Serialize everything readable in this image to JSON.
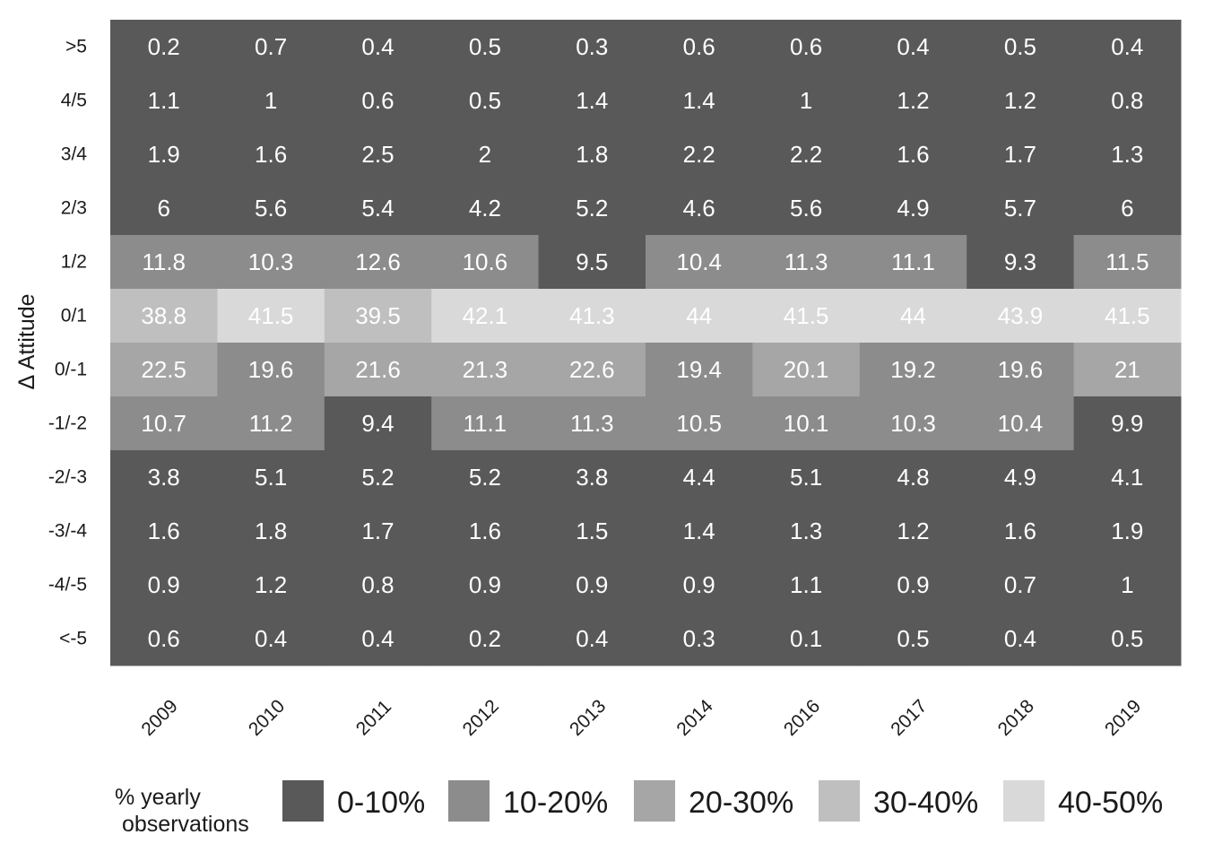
{
  "chart_data": {
    "type": "heatmap",
    "title": "",
    "xlabel": "",
    "ylabel": "Δ Attitude",
    "x_categories": [
      "2009",
      "2010",
      "2011",
      "2012",
      "2013",
      "2014",
      "2016",
      "2017",
      "2018",
      "2019"
    ],
    "y_categories": [
      ">5",
      "4/5",
      "3/4",
      "2/3",
      "1/2",
      "0/1",
      "0/-1",
      "-1/-2",
      "-2/-3",
      "-3/-4",
      "-4/-5",
      "<-5"
    ],
    "values": [
      [
        0.2,
        0.7,
        0.4,
        0.5,
        0.3,
        0.6,
        0.6,
        0.4,
        0.5,
        0.4
      ],
      [
        1.1,
        1,
        0.6,
        0.5,
        1.4,
        1.4,
        1,
        1.2,
        1.2,
        0.8
      ],
      [
        1.9,
        1.6,
        2.5,
        2,
        1.8,
        2.2,
        2.2,
        1.6,
        1.7,
        1.3
      ],
      [
        6,
        5.6,
        5.4,
        4.2,
        5.2,
        4.6,
        5.6,
        4.9,
        5.7,
        6
      ],
      [
        11.8,
        10.3,
        12.6,
        10.6,
        9.5,
        10.4,
        11.3,
        11.1,
        9.3,
        11.5
      ],
      [
        38.8,
        41.5,
        39.5,
        42.1,
        41.3,
        44,
        41.5,
        44,
        43.9,
        41.5
      ],
      [
        22.5,
        19.6,
        21.6,
        21.3,
        22.6,
        19.4,
        20.1,
        19.2,
        19.6,
        21
      ],
      [
        10.7,
        11.2,
        9.4,
        11.1,
        11.3,
        10.5,
        10.1,
        10.3,
        10.4,
        9.9
      ],
      [
        3.8,
        5.1,
        5.2,
        5.2,
        3.8,
        4.4,
        5.1,
        4.8,
        4.9,
        4.1
      ],
      [
        1.6,
        1.8,
        1.7,
        1.6,
        1.5,
        1.4,
        1.3,
        1.2,
        1.6,
        1.9
      ],
      [
        0.9,
        1.2,
        0.8,
        0.9,
        0.9,
        0.9,
        1.1,
        0.9,
        0.7,
        1
      ],
      [
        0.6,
        0.4,
        0.4,
        0.2,
        0.4,
        0.3,
        0.1,
        0.5,
        0.4,
        0.5
      ]
    ],
    "legend": {
      "title_lines": [
        "% yearly",
        "observations"
      ],
      "placement": "bottom",
      "bins": [
        {
          "label": "0-10%",
          "min": 0,
          "max": 10,
          "color": "#595959"
        },
        {
          "label": "10-20%",
          "min": 10,
          "max": 20,
          "color": "#8c8c8c"
        },
        {
          "label": "20-30%",
          "min": 20,
          "max": 30,
          "color": "#a6a6a6"
        },
        {
          "label": "30-40%",
          "min": 30,
          "max": 40,
          "color": "#bfbfbf"
        },
        {
          "label": "40-50%",
          "min": 40,
          "max": 50,
          "color": "#d9d9d9"
        }
      ]
    },
    "grid": false
  }
}
